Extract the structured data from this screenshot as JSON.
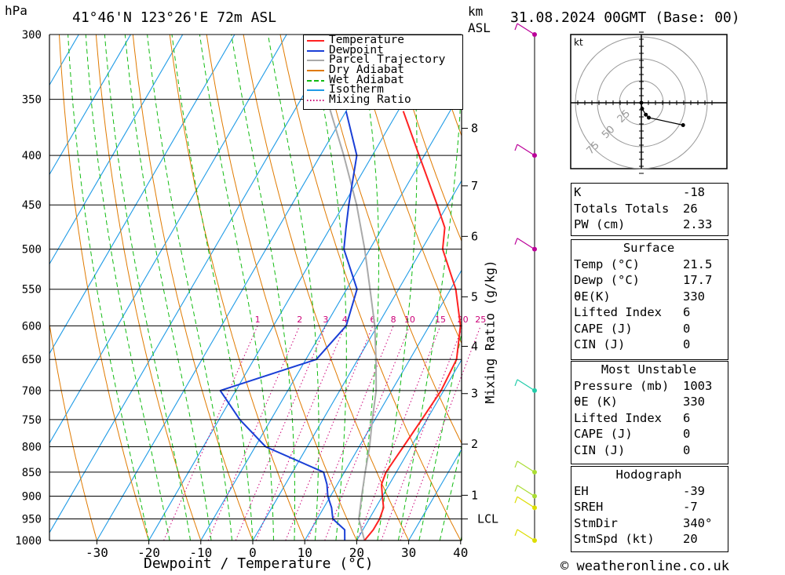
{
  "header": {
    "location": "41°46'N 123°26'E 72m ASL",
    "datetime": "31.08.2024 00GMT (Base: 00)",
    "left_unit": "hPa",
    "km_unit": "km",
    "asl_unit": "ASL"
  },
  "footer": {
    "credit": "© weatheronline.co.uk"
  },
  "chart_data": {
    "type": "skew-t",
    "xlabel": "Dewpoint / Temperature (°C)",
    "ylabel_right": "Mixing Ratio (g/kg)",
    "x_ticks": [
      -30,
      -20,
      -10,
      0,
      10,
      20,
      30,
      40
    ],
    "pressure_levels": [
      300,
      350,
      400,
      450,
      500,
      550,
      600,
      650,
      700,
      750,
      800,
      850,
      900,
      950,
      1000
    ],
    "km_ticks": [
      {
        "label": "8",
        "p": 375
      },
      {
        "label": "7",
        "p": 430
      },
      {
        "label": "6",
        "p": 485
      },
      {
        "label": "5",
        "p": 560
      },
      {
        "label": "4",
        "p": 630
      },
      {
        "label": "3",
        "p": 705
      },
      {
        "label": "2",
        "p": 795
      },
      {
        "label": "1",
        "p": 898
      },
      {
        "label": "LCL",
        "p": 950
      }
    ],
    "mixing_ratio_labels": [
      "1",
      "2",
      "3",
      "4",
      "6",
      "8",
      "10",
      "15",
      "20",
      "25"
    ],
    "mixing_ratio_values": [
      1,
      2,
      3,
      4,
      6,
      8,
      10,
      15,
      20,
      25
    ],
    "legend": [
      "Temperature",
      "Dewpoint",
      "Parcel Trajectory",
      "Dry Adiabat",
      "Wet Adiabat",
      "Isotherm",
      "Mixing Ratio"
    ],
    "colors": {
      "temperature": "#ff2222",
      "dewpoint": "#1a3fd6",
      "parcel": "#aaaaaa",
      "dry_adiabat": "#e07a00",
      "wet_adiabat": "#11bb11",
      "isotherm": "#1f9be6",
      "mixing_ratio": "#cc0077"
    },
    "temperature": [
      [
        1000,
        21.5
      ],
      [
        975,
        22.0
      ],
      [
        950,
        22.0
      ],
      [
        925,
        21.5
      ],
      [
        900,
        20.0
      ],
      [
        875,
        18.5
      ],
      [
        850,
        18.0
      ],
      [
        800,
        18.5
      ],
      [
        750,
        19.0
      ],
      [
        700,
        19.5
      ],
      [
        650,
        19.0
      ],
      [
        600,
        16.0
      ],
      [
        550,
        11.0
      ],
      [
        500,
        4.0
      ],
      [
        475,
        2.0
      ],
      [
        450,
        -2.0
      ],
      [
        400,
        -11.0
      ],
      [
        360,
        -19.0
      ]
    ],
    "dewpoint": [
      [
        1000,
        17.7
      ],
      [
        975,
        16.5
      ],
      [
        950,
        13.0
      ],
      [
        925,
        11.5
      ],
      [
        900,
        9.5
      ],
      [
        875,
        8.0
      ],
      [
        850,
        6.0
      ],
      [
        800,
        -8.0
      ],
      [
        750,
        -16.0
      ],
      [
        700,
        -23.0
      ],
      [
        650,
        -8.0
      ],
      [
        600,
        -6.0
      ],
      [
        550,
        -8.0
      ],
      [
        500,
        -15.0
      ],
      [
        475,
        -17.0
      ],
      [
        450,
        -19.0
      ],
      [
        400,
        -23.0
      ],
      [
        360,
        -30.0
      ]
    ],
    "parcel": [
      [
        1000,
        21.5
      ],
      [
        950,
        18.0
      ],
      [
        900,
        16.0
      ],
      [
        850,
        14.0
      ],
      [
        800,
        12.0
      ],
      [
        750,
        9.5
      ],
      [
        700,
        7.0
      ],
      [
        650,
        3.5
      ],
      [
        600,
        -0.5
      ],
      [
        550,
        -5.5
      ],
      [
        500,
        -11.0
      ],
      [
        450,
        -17.5
      ],
      [
        400,
        -25.5
      ],
      [
        350,
        -35.0
      ],
      [
        310,
        -44.0
      ]
    ],
    "hodograph": {
      "unit": "kt",
      "ring_labels": [
        "25",
        "50",
        "75"
      ],
      "points": [
        [
          0,
          0
        ],
        [
          0.5,
          -4
        ],
        [
          3,
          -8
        ],
        [
          5,
          -10
        ],
        [
          28,
          -15
        ]
      ]
    },
    "wind_profile": [
      {
        "p": 1000,
        "color": "#dddd00"
      },
      {
        "p": 925,
        "color": "#dddd00"
      },
      {
        "p": 900,
        "color": "#aadd33"
      },
      {
        "p": 850,
        "color": "#aadd33"
      },
      {
        "p": 700,
        "color": "#22ccaa"
      },
      {
        "p": 500,
        "color": "#bb0099"
      },
      {
        "p": 400,
        "color": "#bb0099"
      },
      {
        "p": 300,
        "color": "#bb0099"
      }
    ]
  },
  "indices": {
    "top": [
      {
        "label": "K",
        "value": "-18"
      },
      {
        "label": "Totals Totals",
        "value": "26"
      },
      {
        "label": "PW (cm)",
        "value": "2.33"
      }
    ],
    "surface": {
      "title": "Surface",
      "rows": [
        {
          "label": "Temp (°C)",
          "value": "21.5"
        },
        {
          "label": "Dewp (°C)",
          "value": "17.7"
        },
        {
          "label": "θE(K)",
          "value": "330"
        },
        {
          "label": "Lifted Index",
          "value": "6"
        },
        {
          "label": "CAPE (J)",
          "value": "0"
        },
        {
          "label": "CIN (J)",
          "value": "0"
        }
      ]
    },
    "most_unstable": {
      "title": "Most Unstable",
      "rows": [
        {
          "label": "Pressure (mb)",
          "value": "1003"
        },
        {
          "label": "θE (K)",
          "value": "330"
        },
        {
          "label": "Lifted Index",
          "value": "6"
        },
        {
          "label": "CAPE (J)",
          "value": "0"
        },
        {
          "label": "CIN (J)",
          "value": "0"
        }
      ]
    },
    "hodograph": {
      "title": "Hodograph",
      "rows": [
        {
          "label": "EH",
          "value": "-39"
        },
        {
          "label": "SREH",
          "value": "-7"
        },
        {
          "label": "StmDir",
          "value": "340°"
        },
        {
          "label": "StmSpd (kt)",
          "value": "20"
        }
      ]
    }
  }
}
